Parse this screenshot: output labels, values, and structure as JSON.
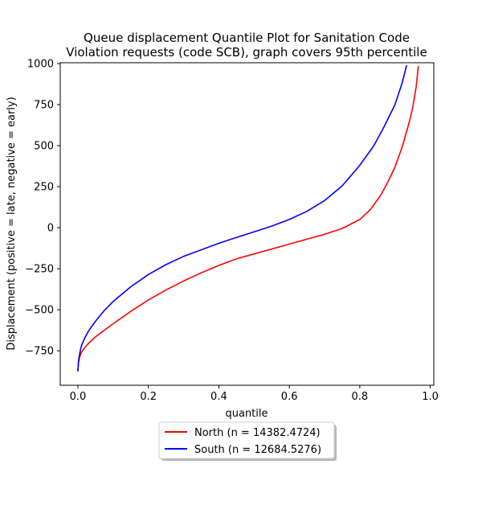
{
  "chart_data": {
    "type": "line",
    "title_lines": [
      "Queue displacement Quantile Plot for Sanitation Code",
      "Violation  requests (code SCB), graph covers 95th percentile"
    ],
    "xlabel": "quantile",
    "ylabel": "Displacement (positive = late, negative = early)",
    "xlim": [
      -0.05,
      1.01
    ],
    "ylim": [
      -960,
      1005
    ],
    "xticks": [
      0.0,
      0.2,
      0.4,
      0.6,
      0.8,
      1.0
    ],
    "xtick_labels": [
      "0.0",
      "0.2",
      "0.4",
      "0.6",
      "0.8",
      "1.0"
    ],
    "yticks": [
      -750,
      -500,
      -250,
      0,
      250,
      500,
      750,
      1000
    ],
    "ytick_labels": [
      "−750",
      "−500",
      "−250",
      "0",
      "250",
      "500",
      "750",
      "1000"
    ],
    "grid": false,
    "legend_position": "below-center",
    "series": [
      {
        "name": "North (n = 14382.4724)",
        "color": "#ff0000",
        "x": [
          0.0,
          0.002,
          0.005,
          0.01,
          0.02,
          0.03,
          0.05,
          0.075,
          0.1,
          0.15,
          0.2,
          0.25,
          0.3,
          0.35,
          0.4,
          0.45,
          0.5,
          0.55,
          0.6,
          0.65,
          0.7,
          0.75,
          0.8,
          0.83,
          0.86,
          0.88,
          0.9,
          0.92,
          0.94,
          0.95,
          0.96,
          0.966
        ],
        "y": [
          -875,
          -820,
          -790,
          -760,
          -730,
          -705,
          -665,
          -625,
          -585,
          -510,
          -440,
          -380,
          -325,
          -275,
          -230,
          -190,
          -160,
          -130,
          -100,
          -70,
          -40,
          -5,
          50,
          110,
          200,
          280,
          370,
          490,
          640,
          730,
          860,
          985
        ]
      },
      {
        "name": "South (n = 12684.5276)",
        "color": "#0000ff",
        "x": [
          0.0,
          0.002,
          0.005,
          0.01,
          0.02,
          0.03,
          0.05,
          0.075,
          0.1,
          0.15,
          0.2,
          0.25,
          0.3,
          0.35,
          0.4,
          0.45,
          0.5,
          0.55,
          0.6,
          0.65,
          0.7,
          0.75,
          0.8,
          0.84,
          0.87,
          0.9,
          0.92,
          0.933
        ],
        "y": [
          -875,
          -810,
          -770,
          -720,
          -670,
          -630,
          -570,
          -505,
          -450,
          -360,
          -285,
          -225,
          -175,
          -135,
          -95,
          -60,
          -25,
          10,
          50,
          100,
          165,
          255,
          380,
          500,
          620,
          750,
          880,
          990
        ]
      }
    ]
  }
}
